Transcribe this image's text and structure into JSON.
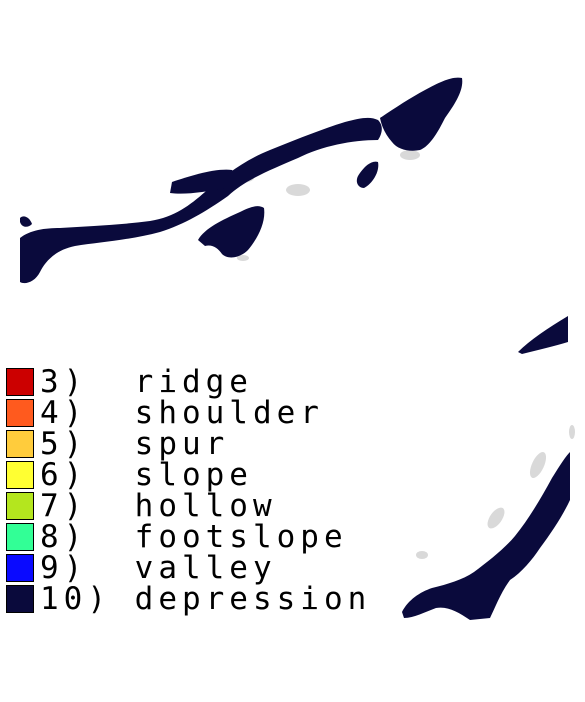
{
  "map": {
    "depression_color": "#0a0a3c",
    "shading_color": "#d9d9d9"
  },
  "legend": [
    {
      "label": "3)  ridge",
      "color": "#cc0000"
    },
    {
      "label": "4)  shoulder",
      "color": "#ff5a1e"
    },
    {
      "label": "5)  spur",
      "color": "#ffcc3c"
    },
    {
      "label": "6)  slope",
      "color": "#ffff32"
    },
    {
      "label": "7)  hollow",
      "color": "#b4e61e"
    },
    {
      "label": "8)  footslope",
      "color": "#32ff96"
    },
    {
      "label": "9)  valley",
      "color": "#0a0aff"
    },
    {
      "label": "10) depression",
      "color": "#0a0a3c"
    }
  ]
}
